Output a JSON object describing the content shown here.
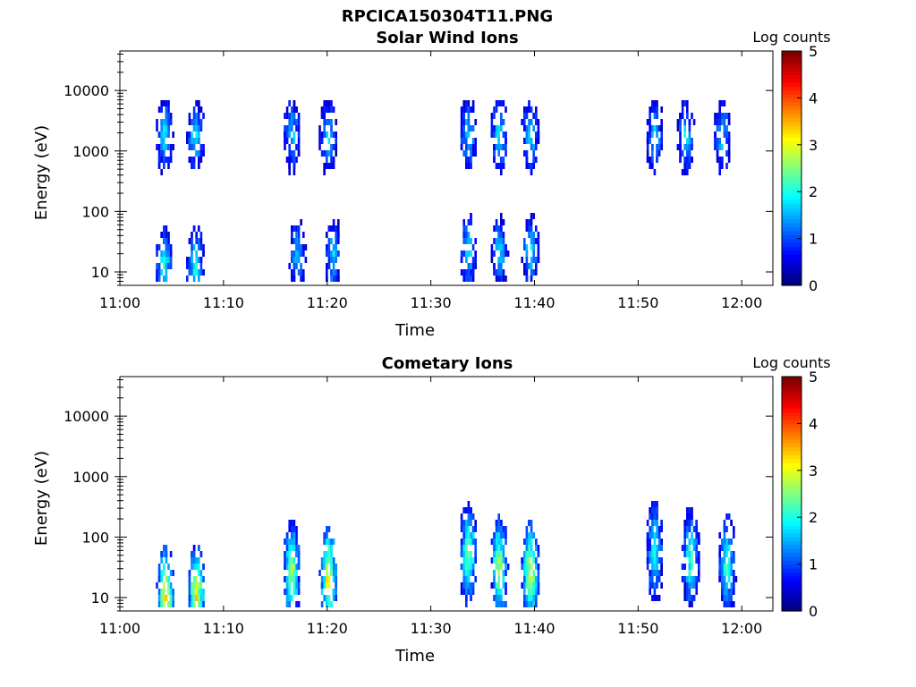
{
  "figure": {
    "title": "RPCICA150304T11.PNG"
  },
  "panels": [
    {
      "title": "Solar Wind Ions",
      "colorbar_label": "Log counts"
    },
    {
      "title": "Cometary Ions",
      "colorbar_label": "Log counts"
    }
  ],
  "chart_data": [
    {
      "type": "heatmap",
      "title": "Solar Wind Ions",
      "xlabel": "Time",
      "ylabel": "Energy (eV)",
      "yscale": "log",
      "ylim": [
        6,
        45000
      ],
      "xlim": [
        "11:00",
        "12:03"
      ],
      "x_ticks": [
        "11:00",
        "11:10",
        "11:20",
        "11:30",
        "11:40",
        "11:50",
        "12:00"
      ],
      "y_ticks": [
        "10",
        "100",
        "1000",
        "10000"
      ],
      "colorbar": {
        "label": "Log counts",
        "range": [
          0,
          5
        ],
        "ticks": [
          "0",
          "1",
          "2",
          "3",
          "4",
          "5"
        ],
        "colormap": "jet"
      },
      "bursts": [
        {
          "time_min": 4.2,
          "energy_peak_eV": 2000,
          "level": 2.0
        },
        {
          "time_min": 4.2,
          "energy_peak_eV": 15,
          "level": 2.2
        },
        {
          "time_min": 7.2,
          "energy_peak_eV": 2000,
          "level": 2.0
        },
        {
          "time_min": 7.2,
          "energy_peak_eV": 15,
          "level": 2.2
        },
        {
          "time_min": 16.5,
          "energy_peak_eV": 2000,
          "level": 1.8
        },
        {
          "time_min": 17.0,
          "energy_peak_eV": 20,
          "level": 1.8
        },
        {
          "time_min": 20.0,
          "energy_peak_eV": 2000,
          "level": 1.8
        },
        {
          "time_min": 20.5,
          "energy_peak_eV": 20,
          "level": 1.8
        },
        {
          "time_min": 33.5,
          "energy_peak_eV": 2000,
          "level": 1.8
        },
        {
          "time_min": 33.5,
          "energy_peak_eV": 25,
          "level": 1.9
        },
        {
          "time_min": 36.5,
          "energy_peak_eV": 2000,
          "level": 2.0
        },
        {
          "time_min": 36.5,
          "energy_peak_eV": 25,
          "level": 2.0
        },
        {
          "time_min": 39.5,
          "energy_peak_eV": 2000,
          "level": 2.0
        },
        {
          "time_min": 39.5,
          "energy_peak_eV": 25,
          "level": 2.0
        },
        {
          "time_min": 51.5,
          "energy_peak_eV": 2000,
          "level": 1.8
        },
        {
          "time_min": 54.5,
          "energy_peak_eV": 2000,
          "level": 1.8
        },
        {
          "time_min": 58.0,
          "energy_peak_eV": 2000,
          "level": 1.8
        }
      ]
    },
    {
      "type": "heatmap",
      "title": "Cometary Ions",
      "xlabel": "Time",
      "ylabel": "Energy (eV)",
      "yscale": "log",
      "ylim": [
        6,
        45000
      ],
      "xlim": [
        "11:00",
        "12:03"
      ],
      "x_ticks": [
        "11:00",
        "11:10",
        "11:20",
        "11:30",
        "11:40",
        "11:50",
        "12:00"
      ],
      "y_ticks": [
        "10",
        "100",
        "1000",
        "10000"
      ],
      "colorbar": {
        "label": "Log counts",
        "range": [
          0,
          5
        ],
        "ticks": [
          "0",
          "1",
          "2",
          "3",
          "4",
          "5"
        ],
        "colormap": "jet"
      },
      "bursts": [
        {
          "time_min": 4.3,
          "energy_peak_eV": 12,
          "level": 3.6
        },
        {
          "time_min": 7.3,
          "energy_peak_eV": 12,
          "level": 3.4
        },
        {
          "time_min": 16.5,
          "energy_peak_eV": 30,
          "level": 3.0
        },
        {
          "time_min": 20.0,
          "energy_peak_eV": 25,
          "level": 3.4
        },
        {
          "time_min": 33.5,
          "energy_peak_eV": 60,
          "level": 2.8
        },
        {
          "time_min": 36.5,
          "energy_peak_eV": 35,
          "level": 3.0
        },
        {
          "time_min": 39.5,
          "energy_peak_eV": 30,
          "level": 3.2
        },
        {
          "time_min": 51.5,
          "energy_peak_eV": 70,
          "level": 2.2
        },
        {
          "time_min": 55.0,
          "energy_peak_eV": 50,
          "level": 2.4
        },
        {
          "time_min": 58.5,
          "energy_peak_eV": 40,
          "level": 2.4
        }
      ]
    }
  ]
}
